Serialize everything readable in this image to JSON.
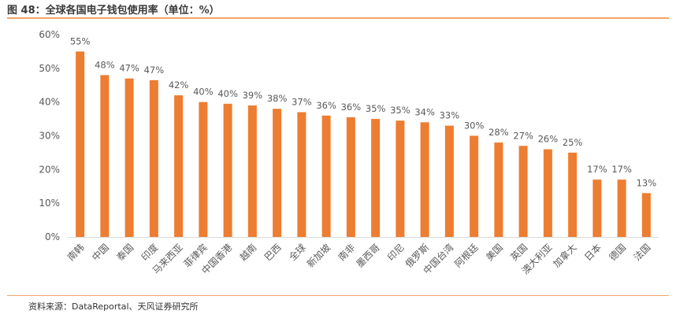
{
  "header": {
    "title": "图 48：全球各国电子钱包使用率（单位：%）"
  },
  "footer": {
    "source": "资料来源：DataReportal、天风证券研究所"
  },
  "chart_data": {
    "type": "bar",
    "categories": [
      "南韩",
      "中国",
      "泰国",
      "印度",
      "马来西亚",
      "菲律宾",
      "中国香港",
      "越南",
      "巴西",
      "全球",
      "新加坡",
      "南非",
      "墨西哥",
      "印尼",
      "俄罗斯",
      "中国台湾",
      "阿根廷",
      "美国",
      "英国",
      "澳大利亚",
      "加拿大",
      "日本",
      "德国",
      "法国"
    ],
    "values": [
      55,
      48,
      47,
      46.5,
      42,
      40,
      39.5,
      39,
      38,
      37,
      36,
      35.5,
      35,
      34.5,
      34,
      33,
      30,
      28,
      27,
      26,
      25,
      17,
      17,
      13
    ],
    "data_labels": [
      "55%",
      "48%",
      "47%",
      "47%",
      "42%",
      "40%",
      "40%",
      "39%",
      "38%",
      "37%",
      "36%",
      "36%",
      "35%",
      "35%",
      "34%",
      "33%",
      "30%",
      "28%",
      "27%",
      "26%",
      "25%",
      "17%",
      "17%",
      "13%"
    ],
    "yticks": [
      "0%",
      "10%",
      "20%",
      "30%",
      "40%",
      "50%",
      "60%"
    ],
    "ylim": [
      0,
      60
    ],
    "bar_color": "#ed7d31",
    "grid": false,
    "legend": "none",
    "title": "",
    "xlabel": "",
    "ylabel": ""
  }
}
